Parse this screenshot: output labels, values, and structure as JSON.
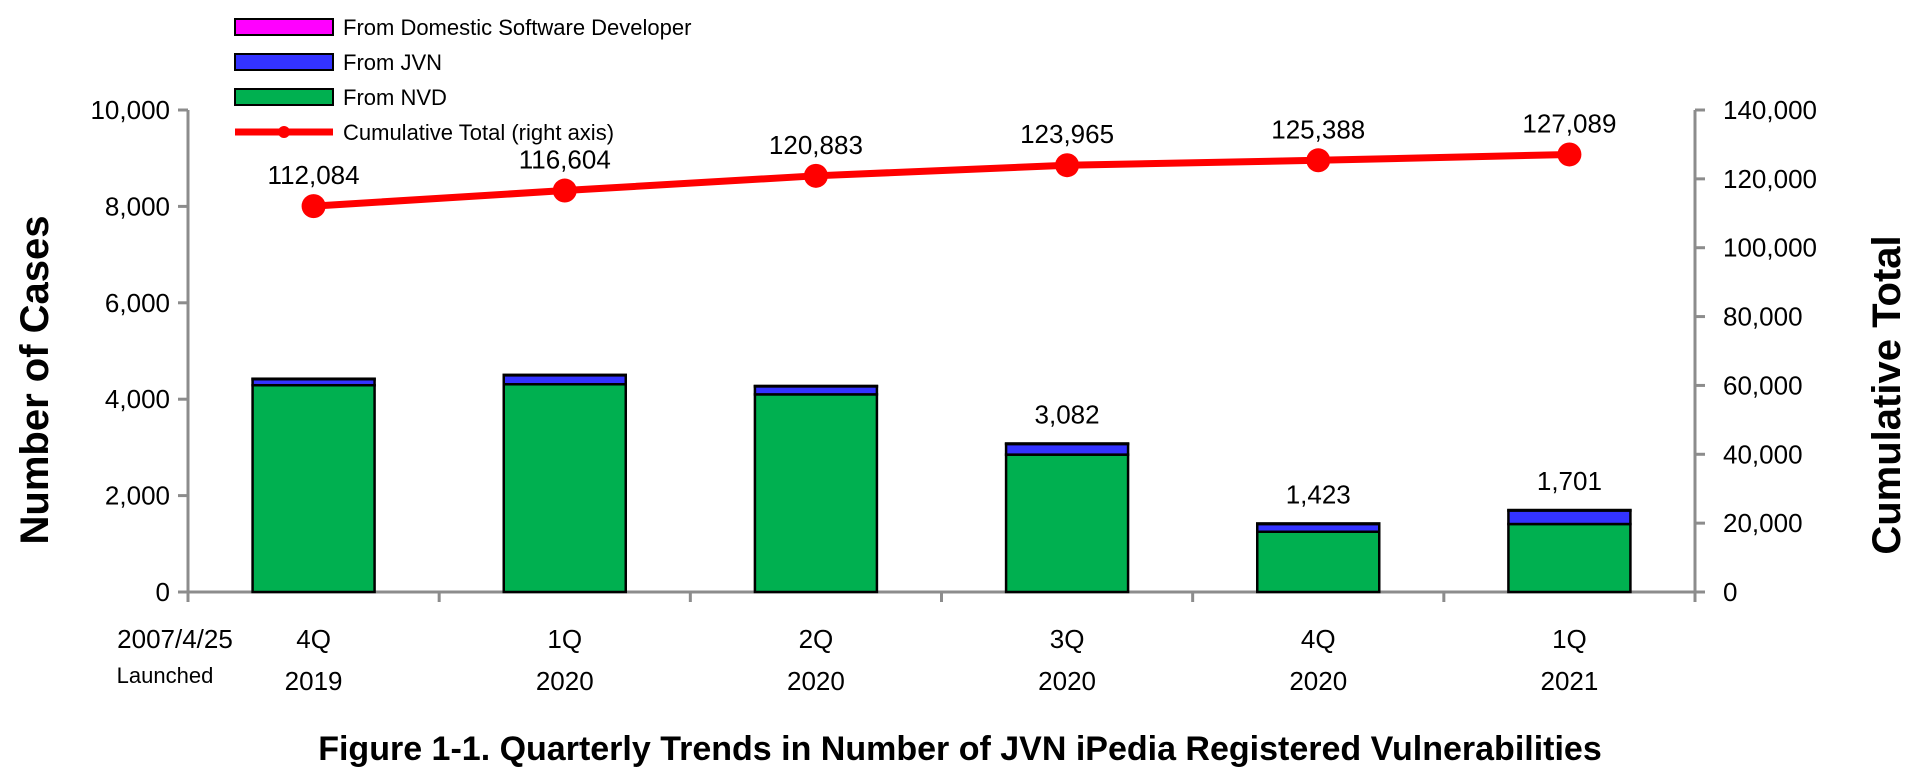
{
  "caption": "Figure 1-1. Quarterly Trends in Number of JVN iPedia Registered Vulnerabilities",
  "launch_note": {
    "date": "2007/4/25",
    "text": "Launched"
  },
  "chart_data": {
    "type": "bar",
    "stacked": true,
    "categories": [
      {
        "q": "4Q",
        "year": "2019"
      },
      {
        "q": "1Q",
        "year": "2020"
      },
      {
        "q": "2Q",
        "year": "2020"
      },
      {
        "q": "3Q",
        "year": "2020"
      },
      {
        "q": "4Q",
        "year": "2020"
      },
      {
        "q": "1Q",
        "year": "2021"
      }
    ],
    "series": [
      {
        "name": "From NVD",
        "color": "#00b050",
        "values": [
          4290,
          4310,
          4100,
          2850,
          1250,
          1410
        ]
      },
      {
        "name": "From JVN",
        "color": "#3333ff",
        "values": [
          130,
          190,
          170,
          220,
          160,
          280
        ]
      },
      {
        "name": "From Domestic Software Developer",
        "color": "#ff00ff",
        "values": [
          5,
          5,
          5,
          12,
          13,
          11
        ]
      }
    ],
    "bar_labels": [
      "",
      "",
      "",
      "3,082",
      "1,423",
      "1,701"
    ],
    "line": {
      "name": "Cumulative Total (right axis)",
      "color": "#ff0000",
      "values": [
        112084,
        116604,
        120883,
        123965,
        125388,
        127089
      ],
      "labels": [
        "112,084",
        "116,604",
        "120,883",
        "123,965",
        "125,388",
        "127,089"
      ]
    },
    "legend_order": [
      "From Domestic Software Developer",
      "From JVN",
      "From NVD",
      "Cumulative Total (right axis)"
    ],
    "legend_position": "top-left",
    "ylabel": "Number of Cases",
    "y2label": "Cumulative Total",
    "ylim": [
      0,
      10000
    ],
    "y2lim": [
      0,
      140000
    ],
    "yticks": [
      "0",
      "2,000",
      "4,000",
      "6,000",
      "8,000",
      "10,000"
    ],
    "y2ticks": [
      "0",
      "20,000",
      "40,000",
      "60,000",
      "80,000",
      "100,000",
      "120,000",
      "140,000"
    ],
    "grid": false
  }
}
